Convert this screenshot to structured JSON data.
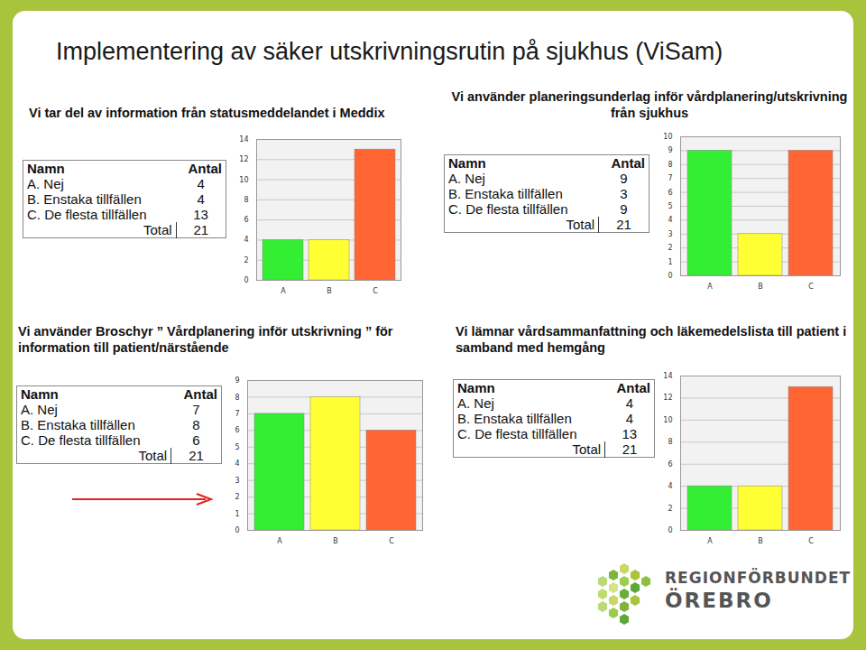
{
  "title": "Implementering av säker utskrivningsrutin på sjukhus (ViSam)",
  "logo": [
    "REGIONFÖRBUNDET",
    "ÖREBRO"
  ],
  "chart_data": [
    {
      "type": "bar",
      "title": "Vi tar del av information från statusmeddelandet i Meddix",
      "categories": [
        "A",
        "B",
        "C"
      ],
      "values": [
        4,
        4,
        13
      ],
      "colors": [
        "#33ee33",
        "#ffff33",
        "#ff6633"
      ],
      "ylim": [
        0,
        14
      ],
      "yticks": [
        0,
        2,
        4,
        6,
        8,
        10,
        12,
        14
      ],
      "grid": true,
      "table": {
        "header": [
          "Namn",
          "Antal"
        ],
        "row_labels": [
          "A. Nej",
          "B. Enstaka tillfällen",
          "C. De flesta tillfällen"
        ],
        "total_label": "Total",
        "total": 21
      }
    },
    {
      "type": "bar",
      "title": "Vi använder planeringsunderlag inför vårdplanering/utskrivning från sjukhus",
      "categories": [
        "A",
        "B",
        "C"
      ],
      "values": [
        9,
        3,
        9
      ],
      "colors": [
        "#33ee33",
        "#ffff33",
        "#ff6633"
      ],
      "ylim": [
        0,
        10
      ],
      "yticks": [
        0,
        1,
        2,
        3,
        4,
        5,
        6,
        7,
        8,
        9,
        10
      ],
      "grid": true,
      "table": {
        "header": [
          "Namn",
          "Antal"
        ],
        "row_labels": [
          "A. Nej",
          "B. Enstaka tillfällen",
          "C. De flesta tillfällen"
        ],
        "total_label": "Total",
        "total": 21
      }
    },
    {
      "type": "bar",
      "title": "Vi använder Broschyr ” Vårdplanering inför utskrivning ” för information till patient/närstående",
      "categories": [
        "A",
        "B",
        "C"
      ],
      "values": [
        7,
        8,
        6
      ],
      "colors": [
        "#33ee33",
        "#ffff33",
        "#ff6633"
      ],
      "ylim": [
        0,
        9
      ],
      "yticks": [
        0,
        1,
        2,
        3,
        4,
        5,
        6,
        7,
        8,
        9
      ],
      "grid": true,
      "table": {
        "header": [
          "Namn",
          "Antal"
        ],
        "row_labels": [
          "A. Nej",
          "B. Enstaka tillfällen",
          "C. De flesta tillfällen"
        ],
        "total_label": "Total",
        "total": 21
      }
    },
    {
      "type": "bar",
      "title": "Vi lämnar vårdsammanfattning och läkemedelslista till patient i samband med hemgång",
      "categories": [
        "A",
        "B",
        "C"
      ],
      "values": [
        4,
        4,
        13
      ],
      "colors": [
        "#33ee33",
        "#ffff33",
        "#ff6633"
      ],
      "ylim": [
        0,
        14
      ],
      "yticks": [
        0,
        2,
        4,
        6,
        8,
        10,
        12,
        14
      ],
      "grid": true,
      "table": {
        "header": [
          "Namn",
          "Antal"
        ],
        "row_labels": [
          "A. Nej",
          "B. Enstaka tillfällen",
          "C. De flesta tillfällen"
        ],
        "total_label": "Total",
        "total": 21
      }
    }
  ]
}
